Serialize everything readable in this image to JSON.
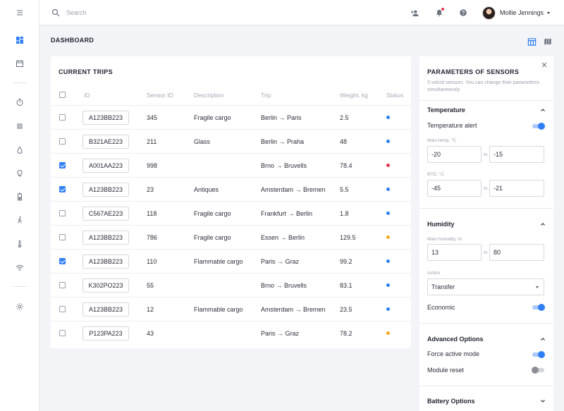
{
  "topbar": {
    "search_placeholder": "Search",
    "user_name": "Mollie Jennings"
  },
  "page": {
    "title": "DASHBOARD"
  },
  "trips": {
    "title": "CURRENT TRIPS",
    "columns": [
      "ID",
      "Sensor ID",
      "Description",
      "Trip",
      "Weight, kg",
      "Status"
    ],
    "rows": [
      {
        "checked": false,
        "id": "A123BB223",
        "sensor": "345",
        "desc": "Fragile cargo",
        "trip": "Berlin → Paris",
        "weight": "2.5",
        "status": "#2f7ef5"
      },
      {
        "checked": false,
        "id": "B321AE223",
        "sensor": "211",
        "desc": "Glass",
        "trip": "Berlin → Praha",
        "weight": "48",
        "status": "#2f7ef5"
      },
      {
        "checked": true,
        "id": "A001AA223",
        "sensor": "998",
        "desc": "",
        "trip": "Brno → Bruvells",
        "weight": "78.4",
        "status": "#e5364f"
      },
      {
        "checked": true,
        "id": "A123BB223",
        "sensor": "23",
        "desc": "Antiques",
        "trip": "Amsterdam → Bremen",
        "weight": "5.5",
        "status": "#2f7ef5"
      },
      {
        "checked": false,
        "id": "C567AE223",
        "sensor": "118",
        "desc": "Fragile cargo",
        "trip": "Frankfurt → Berlin",
        "weight": "1.8",
        "status": "#2f7ef5"
      },
      {
        "checked": false,
        "id": "A123BB223",
        "sensor": "786",
        "desc": "Fragile cargo",
        "trip": "Essen → Berlin",
        "weight": "129.5",
        "status": "#f6a623"
      },
      {
        "checked": true,
        "id": "A123BB223",
        "sensor": "110",
        "desc": "Flammable cargo",
        "trip": "Paris → Graz",
        "weight": "99.2",
        "status": "#2f7ef5"
      },
      {
        "checked": false,
        "id": "K302PO223",
        "sensor": "55",
        "desc": "",
        "trip": "Brno → Bruvells",
        "weight": "83.1",
        "status": "#2f7ef5"
      },
      {
        "checked": false,
        "id": "A123BB223",
        "sensor": "12",
        "desc": "Flammable cargo",
        "trip": "Amsterdam → Bremen",
        "weight": "23.5",
        "status": "#2f7ef5"
      },
      {
        "checked": false,
        "id": "P123PA223",
        "sensor": "43",
        "desc": "",
        "trip": "Paris → Graz",
        "weight": "78.2",
        "status": "#f6a623"
      }
    ]
  },
  "panel": {
    "title": "PARAMETERS OF SENSORS",
    "description": "3 selctd sensors. You can change their paramettres simultaneously",
    "temperature": {
      "title": "Temperature",
      "alert_label": "Temperature alert",
      "alert_on": true,
      "main_label": "Main temp, °C",
      "main_from": "-20",
      "main_to": "-15",
      "btd_label": "BTD, °C",
      "btd_from": "-45",
      "btd_to": "-21",
      "to_label": "to"
    },
    "humidity": {
      "title": "Humidity",
      "main_label": "Main humidity, %",
      "from": "13",
      "to": "80",
      "to_label": "to",
      "action_label": "Action",
      "action_value": "Transfer",
      "economic_label": "Economic",
      "economic_on": true
    },
    "advanced": {
      "title": "Advanced Options",
      "force_label": "Force active mode",
      "force_on": true,
      "reset_label": "Module reset",
      "reset_on": false
    },
    "battery": {
      "title": "Battery Options"
    }
  },
  "colors": {
    "accent": "#2f7ef5",
    "alert": "#e5364f",
    "warning": "#f6a623"
  }
}
